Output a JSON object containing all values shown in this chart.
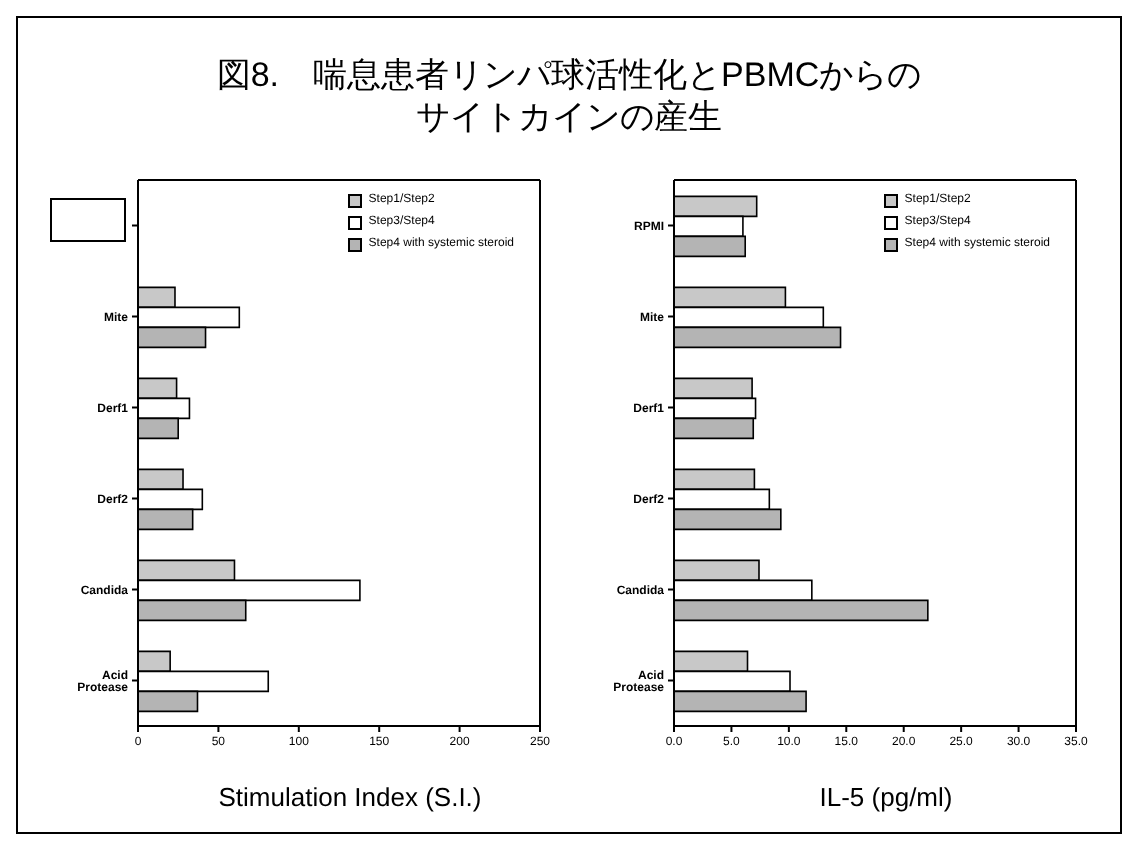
{
  "chart_data": [
    {
      "type": "bar",
      "orientation": "horizontal",
      "title": "図8.　喘息患者リンパ球活性化とPBMCからのサイトカインの産生",
      "xlabel": "Stimulation Index (S.I.)",
      "categories": [
        null,
        "Mite",
        "Derf1",
        "Derf2",
        "Candida",
        "Acid Protease"
      ],
      "series": [
        {
          "name": "Step1/Step2",
          "color": "#c8c8c8",
          "values": [
            null,
            23,
            24,
            28,
            60,
            20
          ]
        },
        {
          "name": "Step3/Step4",
          "color": "#ffffff",
          "values": [
            null,
            63,
            32,
            40,
            138,
            81
          ]
        },
        {
          "name": "Step4 with systemic steroid",
          "color": "#b4b4b4",
          "values": [
            null,
            42,
            25,
            34,
            67,
            37
          ]
        }
      ],
      "xlim": [
        0,
        250
      ],
      "xticks": [
        0,
        50,
        100,
        150,
        200,
        250
      ],
      "legend": "top right",
      "grid": false
    },
    {
      "type": "bar",
      "orientation": "horizontal",
      "xlabel": "IL-5 (pg/ml)",
      "categories": [
        "RPMI",
        "Mite",
        "Derf1",
        "Derf2",
        "Candida",
        "Acid Protease"
      ],
      "series": [
        {
          "name": "Step1/Step2",
          "color": "#c8c8c8",
          "values": [
            7.2,
            9.7,
            6.8,
            7.0,
            7.4,
            6.4
          ]
        },
        {
          "name": "Step3/Step4",
          "color": "#ffffff",
          "values": [
            6.0,
            13.0,
            7.1,
            8.3,
            12.0,
            10.1
          ]
        },
        {
          "name": "Step4 with systemic steroid",
          "color": "#b4b4b4",
          "values": [
            6.2,
            14.5,
            6.9,
            9.3,
            22.1,
            11.5
          ]
        }
      ],
      "xlim": [
        0,
        35
      ],
      "xticks": [
        {
          "value": 0,
          "label": "0.0"
        },
        {
          "value": 5,
          "label": "5.0"
        },
        {
          "value": 10,
          "label": "10.0"
        },
        {
          "value": 15,
          "label": "15.0"
        },
        {
          "value": 20,
          "label": "20.0"
        },
        {
          "value": 25,
          "label": "25.0"
        },
        {
          "value": 30,
          "label": "30.0"
        },
        {
          "value": 35,
          "label": "35.0"
        }
      ],
      "legend": "top right",
      "grid": false
    }
  ]
}
